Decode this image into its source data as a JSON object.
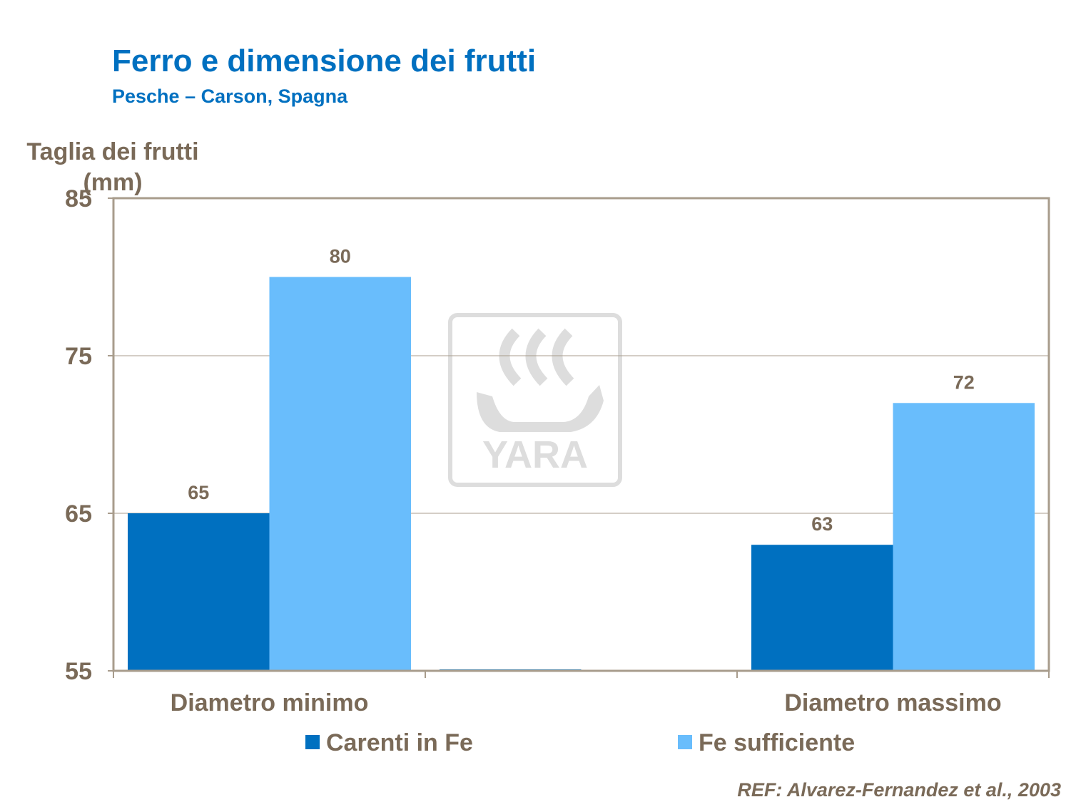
{
  "chart_data": {
    "type": "bar",
    "title": "Ferro e dimensione dei frutti",
    "subtitle": "Pesche – Carson, Spagna",
    "ylabel": "Taglia dei frutti (mm)",
    "xlabel": "",
    "categories": [
      "Diametro minimo",
      "",
      "Diametro massimo"
    ],
    "series": [
      {
        "name": "Carenti in Fe",
        "color": "#0070c0",
        "values": [
          65,
          null,
          63
        ]
      },
      {
        "name": "Fe sufficiente",
        "color": "#69bdfc",
        "values": [
          80,
          null,
          72
        ]
      }
    ],
    "ylim": [
      55,
      85
    ],
    "yticks": [
      55,
      65,
      75,
      85
    ],
    "grid": true,
    "legend_position": "bottom"
  },
  "reference": "REF: Alvarez-Fernandez et al., 2003",
  "watermark": {
    "icon": "yara-logo-icon",
    "text": "YARA",
    "color": "#d9d9d9"
  },
  "colors": {
    "title": "#0070c0",
    "text": "#7a6a58",
    "plot_border": "#a89c8c",
    "gridline": "#a89c8c"
  }
}
